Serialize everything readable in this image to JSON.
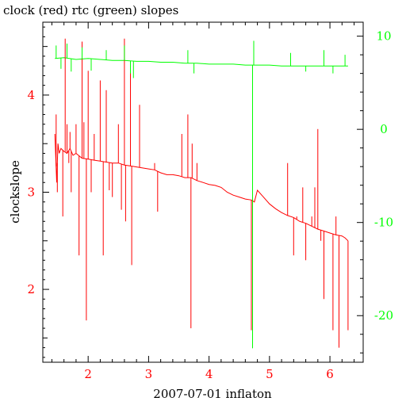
{
  "chart_data": {
    "type": "line",
    "title": "clock (red) rtc (green) slopes",
    "xlabel": "2007-07-01 inflaton",
    "ylabel": "clockslope",
    "xlim": [
      1.25,
      6.55
    ],
    "ylim_left": [
      1.25,
      4.75
    ],
    "ylim_right": [
      -25,
      11.5
    ],
    "x_ticks": [
      2,
      3,
      4,
      5,
      6
    ],
    "y_ticks_left": [
      2,
      3,
      4
    ],
    "y_ticks_right": [
      10,
      0,
      -10,
      -20
    ],
    "colors": {
      "clock": "#ff0000",
      "rtc": "#00ff00",
      "axis": "#000000"
    },
    "series": [
      {
        "axis": "left",
        "color": "#ff0000",
        "x": [
          1.45,
          1.48,
          1.5,
          1.52,
          1.55,
          1.6,
          1.65,
          1.7,
          1.75,
          1.8,
          1.9,
          2.0,
          2.1,
          2.2,
          2.3,
          2.4,
          2.5,
          2.6,
          2.7,
          2.8,
          2.9,
          3.0,
          3.1,
          3.2,
          3.3,
          3.4,
          3.5,
          3.6,
          3.7,
          3.8,
          3.9,
          4.0,
          4.1,
          4.2,
          4.3,
          4.4,
          4.5,
          4.6,
          4.7,
          4.75,
          4.8,
          4.9,
          5.0,
          5.1,
          5.2,
          5.3,
          5.4,
          5.5,
          5.6,
          5.7,
          5.8,
          5.9,
          6.0,
          6.1,
          6.2,
          6.25,
          6.3
        ],
        "y": [
          3.6,
          3.1,
          3.5,
          3.4,
          3.45,
          3.42,
          3.4,
          3.45,
          3.38,
          3.4,
          3.35,
          3.34,
          3.33,
          3.32,
          3.31,
          3.3,
          3.3,
          3.28,
          3.27,
          3.26,
          3.25,
          3.24,
          3.23,
          3.2,
          3.18,
          3.18,
          3.17,
          3.15,
          3.15,
          3.12,
          3.1,
          3.08,
          3.07,
          3.05,
          3.0,
          2.97,
          2.95,
          2.93,
          2.92,
          2.9,
          3.02,
          2.95,
          2.88,
          2.83,
          2.79,
          2.76,
          2.74,
          2.7,
          2.68,
          2.65,
          2.62,
          2.6,
          2.58,
          2.56,
          2.55,
          2.53,
          2.5
        ]
      },
      {
        "axis": "right",
        "color": "#00ff00",
        "x": [
          1.45,
          1.6,
          1.8,
          2.0,
          2.2,
          2.4,
          2.6,
          2.8,
          3.0,
          3.2,
          3.4,
          3.6,
          3.8,
          4.0,
          4.2,
          4.4,
          4.6,
          4.8,
          5.0,
          5.2,
          5.4,
          5.6,
          5.8,
          6.0,
          6.2,
          6.3
        ],
        "y": [
          7.6,
          7.7,
          7.5,
          7.6,
          7.5,
          7.4,
          7.4,
          7.3,
          7.3,
          7.2,
          7.2,
          7.1,
          7.1,
          7.0,
          7.0,
          7.0,
          6.9,
          6.9,
          6.9,
          6.8,
          6.8,
          6.8,
          6.8,
          6.8,
          6.8,
          6.8
        ]
      }
    ],
    "spikes": [
      {
        "axis": "left",
        "color": "#ff0000",
        "x": [
          1.47,
          1.49,
          1.58,
          1.62,
          1.65,
          1.68,
          1.7,
          1.72,
          1.8,
          1.85,
          1.9,
          1.93,
          1.97,
          2.0,
          2.05,
          2.1,
          2.2,
          2.25,
          2.3,
          2.35,
          2.4,
          2.5,
          2.55,
          2.6,
          2.62,
          2.7,
          2.72,
          2.85,
          3.1,
          3.15,
          3.55,
          3.65,
          3.7,
          3.72,
          3.8,
          4.7,
          4.72,
          5.3,
          5.4,
          5.45,
          5.55,
          5.6,
          5.7,
          5.75,
          5.8,
          5.85,
          5.9,
          6.05,
          6.1,
          6.15,
          6.3
        ],
        "y": [
          3.8,
          3.0,
          2.75,
          4.58,
          3.7,
          3.3,
          3.62,
          3.0,
          3.7,
          2.35,
          4.55,
          3.72,
          1.68,
          4.25,
          3.0,
          3.6,
          4.15,
          2.35,
          4.05,
          3.02,
          2.95,
          3.7,
          2.82,
          4.58,
          2.7,
          4.3,
          2.25,
          3.9,
          3.3,
          2.8,
          3.6,
          3.8,
          1.6,
          3.5,
          3.3,
          1.58,
          2.65,
          3.3,
          2.35,
          2.75,
          3.05,
          2.3,
          2.75,
          3.05,
          3.65,
          2.5,
          1.9,
          1.58,
          2.75,
          1.4,
          1.58
        ]
      },
      {
        "axis": "right",
        "color": "#00ff00",
        "x": [
          1.47,
          1.55,
          1.65,
          1.72,
          1.9,
          2.05,
          2.3,
          2.6,
          2.75,
          2.7,
          3.65,
          3.75,
          4.72,
          4.74,
          5.35,
          5.6,
          5.9,
          6.05,
          6.25
        ],
        "y": [
          9.0,
          6.5,
          9.2,
          6.2,
          8.8,
          6.3,
          8.5,
          9.0,
          5.5,
          6.0,
          8.5,
          6.0,
          -23.5,
          9.5,
          8.2,
          6.2,
          8.5,
          6.0,
          8.0
        ]
      }
    ]
  }
}
